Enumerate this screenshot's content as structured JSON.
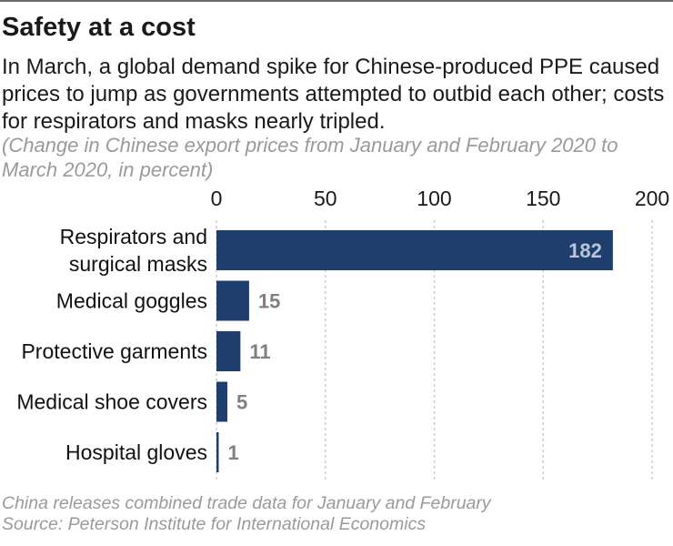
{
  "header": {
    "title": "Safety at a cost",
    "subtitle": "In March, a global demand spike for Chinese-produced PPE caused prices to jump as governments attempted to outbid each other; costs for respirators and masks nearly tripled.",
    "note": "(Change in Chinese export prices from January and February 2020 to March 2020, in percent)"
  },
  "footer": {
    "line1": "China releases combined trade data for January and February",
    "line2": "Source: Peterson Institute for International Economics"
  },
  "colors": {
    "bar": "#1e3f6e",
    "value_inside": "#b9c5d6",
    "value_outside": "#808080",
    "gridline": "#cfcfcf"
  },
  "chart_data": {
    "type": "bar",
    "orientation": "horizontal",
    "categories": [
      [
        "Respirators and",
        "surgical masks"
      ],
      [
        "Medical goggles"
      ],
      [
        "Protective garments"
      ],
      [
        "Medical shoe covers"
      ],
      [
        "Hospital gloves"
      ]
    ],
    "values": [
      182,
      15,
      11,
      5,
      1
    ],
    "value_labels": [
      "182",
      "15",
      "11",
      "5",
      "1"
    ],
    "xticks": [
      0,
      50,
      100,
      150,
      200
    ],
    "xlim": [
      0,
      200
    ],
    "grid": true,
    "xlabel": "",
    "ylabel": ""
  }
}
